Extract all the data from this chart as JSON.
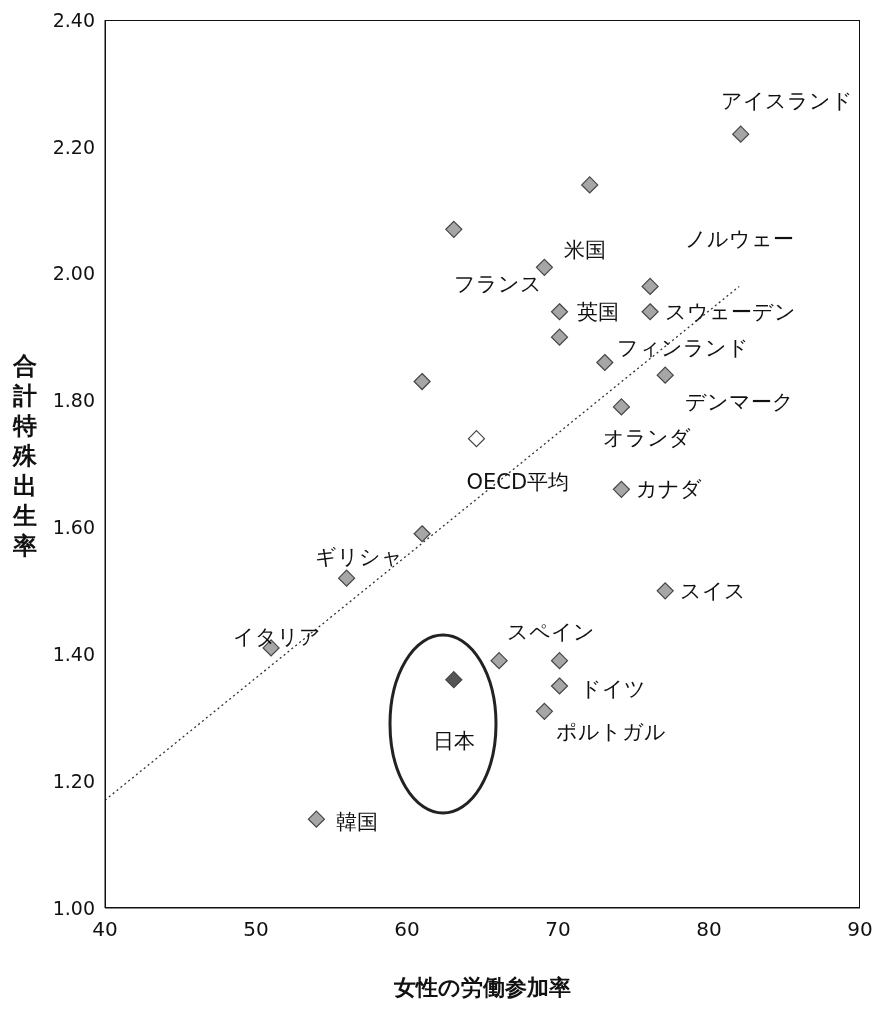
{
  "chart_data": {
    "type": "scatter",
    "xlabel": "女性の労働参加率",
    "ylabel": "合計特殊出生率",
    "xlim": [
      40,
      90
    ],
    "xticks": [
      40,
      50,
      60,
      70,
      80,
      90
    ],
    "ylim": [
      1.0,
      2.4
    ],
    "yticks": [
      {
        "value": 1.0,
        "label": "1.00"
      },
      {
        "value": 1.2,
        "label": "1.20"
      },
      {
        "value": 1.4,
        "label": "1.40"
      },
      {
        "value": 1.6,
        "label": "1.60"
      },
      {
        "value": 1.8,
        "label": "1.80"
      },
      {
        "value": 2.0,
        "label": "2.00"
      },
      {
        "value": 2.2,
        "label": "2.20"
      },
      {
        "value": 2.4,
        "label": "2.40"
      }
    ],
    "grid": false,
    "legend": false,
    "marker": "diamond",
    "series": [
      {
        "type": "scatter",
        "color": "#a6a6a6",
        "x": [
          82.1,
          72.1,
          63.1,
          69.1,
          76.1,
          70.1,
          76.1,
          70.1,
          73.1,
          61.0,
          77.1,
          74.2,
          64.6,
          74.2,
          61.0,
          56.0,
          77.1,
          51.0,
          66.1,
          70.1,
          70.1,
          63.1,
          69.1,
          54.0
        ],
        "values": [
          2.22,
          2.14,
          2.07,
          2.01,
          1.98,
          1.94,
          1.94,
          1.9,
          1.86,
          1.83,
          1.84,
          1.79,
          1.74,
          1.66,
          1.59,
          1.52,
          1.5,
          1.41,
          1.39,
          1.39,
          1.35,
          1.36,
          1.31,
          1.14
        ],
        "colors": [
          "#a6a6a6",
          "#a6a6a6",
          "#a6a6a6",
          "#a6a6a6",
          "#a6a6a6",
          "#a6a6a6",
          "#a6a6a6",
          "#a6a6a6",
          "#a6a6a6",
          "#a6a6a6",
          "#a6a6a6",
          "#a6a6a6",
          "#ffffff",
          "#a6a6a6",
          "#a6a6a6",
          "#a6a6a6",
          "#a6a6a6",
          "#a6a6a6",
          "#a6a6a6",
          "#a6a6a6",
          "#a6a6a6",
          "#555555",
          "#a6a6a6",
          "#a6a6a6"
        ]
      },
      {
        "type": "line",
        "color": "#333333",
        "line_style": "dotted",
        "marker": "none",
        "x": [
          40,
          82
        ],
        "values": [
          1.17,
          1.98
        ]
      }
    ],
    "annotations": [
      {
        "text": "アイスランド",
        "x": 82.1,
        "y": 2.22
      },
      {
        "text": "米国",
        "x": 69.1,
        "y": 2.01
      },
      {
        "text": "ノルウェー",
        "x": 76.1,
        "y": 1.98
      },
      {
        "text": "フランス",
        "x": 69.1,
        "y": 2.01
      },
      {
        "text": "英国",
        "x": 70.1,
        "y": 1.94
      },
      {
        "text": "スウェーデン",
        "x": 76.1,
        "y": 1.94
      },
      {
        "text": "フィンランド",
        "x": 73.1,
        "y": 1.86
      },
      {
        "text": "デンマーク",
        "x": 77.1,
        "y": 1.84
      },
      {
        "text": "オランダ",
        "x": 74.2,
        "y": 1.79
      },
      {
        "text": "OECD平均",
        "x": 64.6,
        "y": 1.74
      },
      {
        "text": "カナダ",
        "x": 74.2,
        "y": 1.66
      },
      {
        "text": "ギリシャ",
        "x": 56.0,
        "y": 1.52
      },
      {
        "text": "スイス",
        "x": 77.1,
        "y": 1.5
      },
      {
        "text": "イタリア",
        "x": 51.0,
        "y": 1.41
      },
      {
        "text": "スペイン",
        "x": 66.1,
        "y": 1.39
      },
      {
        "text": "ドイツ",
        "x": 70.1,
        "y": 1.35
      },
      {
        "text": "ポルトガル",
        "x": 69.1,
        "y": 1.31
      },
      {
        "text": "日本",
        "x": 63.1,
        "y": 1.36
      },
      {
        "text": "韓国",
        "x": 54.0,
        "y": 1.14
      }
    ]
  }
}
